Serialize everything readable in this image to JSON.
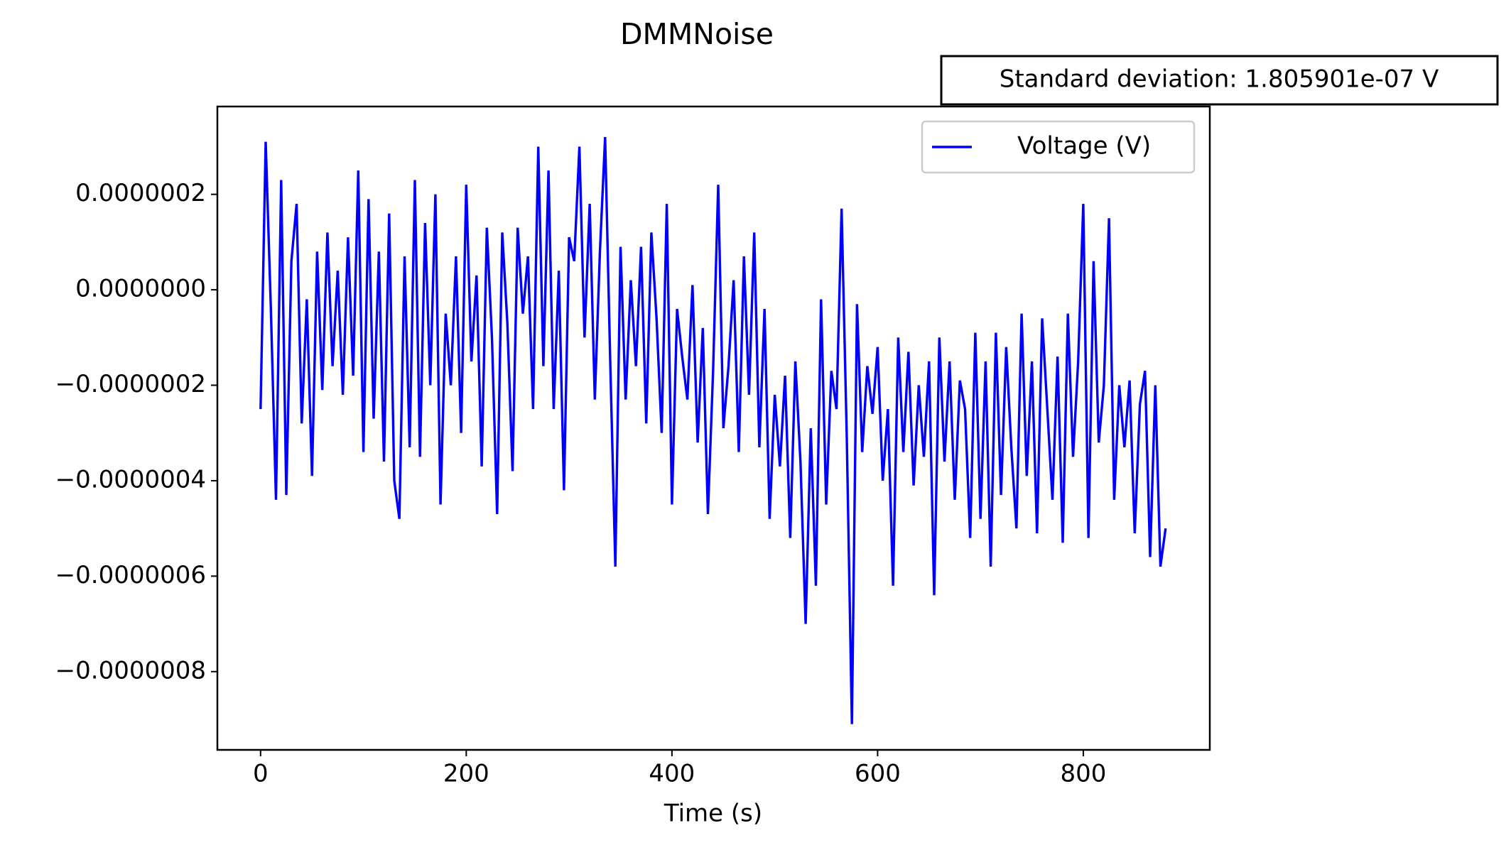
{
  "chart_data": {
    "type": "line",
    "title": "DMMNoise",
    "x_label": "Time (s)",
    "annotation": "Standard deviation: 1.805901e-07 V",
    "legend_position": "upper right",
    "x": [
      0,
      5,
      10,
      15,
      20,
      25,
      30,
      35,
      40,
      45,
      50,
      55,
      60,
      65,
      70,
      75,
      80,
      85,
      90,
      95,
      100,
      105,
      110,
      115,
      120,
      125,
      130,
      135,
      140,
      145,
      150,
      155,
      160,
      165,
      170,
      175,
      180,
      185,
      190,
      195,
      200,
      205,
      210,
      215,
      220,
      225,
      230,
      235,
      240,
      245,
      250,
      255,
      260,
      265,
      270,
      275,
      280,
      285,
      290,
      295,
      300,
      305,
      310,
      315,
      320,
      325,
      330,
      335,
      340,
      345,
      350,
      355,
      360,
      365,
      370,
      375,
      380,
      385,
      390,
      395,
      400,
      405,
      410,
      415,
      420,
      425,
      430,
      435,
      440,
      445,
      450,
      455,
      460,
      465,
      470,
      475,
      480,
      485,
      490,
      495,
      500,
      505,
      510,
      515,
      520,
      525,
      530,
      535,
      540,
      545,
      550,
      555,
      560,
      565,
      570,
      575,
      580,
      585,
      590,
      595,
      600,
      605,
      610,
      615,
      620,
      625,
      630,
      635,
      640,
      645,
      650,
      655,
      660,
      665,
      670,
      675,
      680,
      685,
      690,
      695,
      700,
      705,
      710,
      715,
      720,
      725,
      730,
      735,
      740,
      745,
      750,
      755,
      760,
      765,
      770,
      775,
      780,
      785,
      790,
      795,
      800,
      805,
      810,
      815,
      820,
      825,
      830,
      835,
      840,
      845,
      850,
      855,
      860,
      865,
      870,
      875,
      880
    ],
    "series": [
      {
        "name": "Voltage (V)",
        "color": "#0000ff",
        "values": [
          -2.5e-07,
          3.1e-07,
          -4e-08,
          -4.4e-07,
          2.3e-07,
          -4.3e-07,
          6e-08,
          1.8e-07,
          -2.8e-07,
          -2e-08,
          -3.9e-07,
          8e-08,
          -2.1e-07,
          1.2e-07,
          -1.6e-07,
          4e-08,
          -2.2e-07,
          1.1e-07,
          -1.8e-07,
          2.5e-07,
          -3.4e-07,
          1.9e-07,
          -2.7e-07,
          8e-08,
          -3.6e-07,
          1.6e-07,
          -4e-07,
          -4.8e-07,
          7e-08,
          -3.3e-07,
          2.3e-07,
          -3.5e-07,
          1.4e-07,
          -2e-07,
          2e-07,
          -4.5e-07,
          -5e-08,
          -2e-07,
          7e-08,
          -3e-07,
          2.2e-07,
          -1.5e-07,
          3e-08,
          -3.7e-07,
          1.3e-07,
          -1e-07,
          -4.7e-07,
          1.2e-07,
          -7e-08,
          -3.8e-07,
          1.3e-07,
          -5e-08,
          7e-08,
          -2.5e-07,
          3e-07,
          -1.6e-07,
          2.5e-07,
          -2.5e-07,
          4e-08,
          -4.2e-07,
          1.1e-07,
          6e-08,
          3e-07,
          -1e-07,
          1.8e-07,
          -2.3e-07,
          8e-08,
          3.2e-07,
          -1.5e-07,
          -5.8e-07,
          9e-08,
          -2.3e-07,
          2e-08,
          -1.6e-07,
          9e-08,
          -2.8e-07,
          1.2e-07,
          -6e-08,
          -3e-07,
          1.8e-07,
          -4.5e-07,
          -4e-08,
          -1.4e-07,
          -2.3e-07,
          1e-08,
          -3.2e-07,
          -8e-08,
          -4.7e-07,
          -1.7e-07,
          2.2e-07,
          -2.9e-07,
          -1.6e-07,
          2e-08,
          -3.4e-07,
          7e-08,
          -2.2e-07,
          1.2e-07,
          -3.3e-07,
          -4e-08,
          -4.8e-07,
          -2.2e-07,
          -3.7e-07,
          -1.8e-07,
          -5.2e-07,
          -1.5e-07,
          -3.6e-07,
          -7e-07,
          -2.9e-07,
          -6.2e-07,
          -2e-08,
          -4.5e-07,
          -1.7e-07,
          -2.5e-07,
          1.7e-07,
          -3.1e-07,
          -9.1e-07,
          -3e-08,
          -3.4e-07,
          -1.6e-07,
          -2.6e-07,
          -1.2e-07,
          -4e-07,
          -2.5e-07,
          -6.2e-07,
          -1e-07,
          -3.4e-07,
          -1.3e-07,
          -4.1e-07,
          -2e-07,
          -3.5e-07,
          -1.5e-07,
          -6.4e-07,
          -1e-07,
          -3.6e-07,
          -1.5e-07,
          -4.4e-07,
          -1.9e-07,
          -2.5e-07,
          -5.2e-07,
          -9e-08,
          -4.8e-07,
          -1.5e-07,
          -5.8e-07,
          -9e-08,
          -4.3e-07,
          -1.2e-07,
          -3.3e-07,
          -5e-07,
          -5e-08,
          -3.9e-07,
          -1.5e-07,
          -5.1e-07,
          -6e-08,
          -2.5e-07,
          -4.4e-07,
          -1.4e-07,
          -5.3e-07,
          -5e-08,
          -3.5e-07,
          -1.5e-07,
          1.8e-07,
          -5.2e-07,
          6e-08,
          -3.2e-07,
          -2e-07,
          1.5e-07,
          -4.4e-07,
          -2e-07,
          -3.3e-07,
          -1.9e-07,
          -5.1e-07,
          -2.4e-07,
          -1.7e-07,
          -5.6e-07,
          -2e-07,
          -5.8e-07,
          -5e-07
        ]
      }
    ],
    "xlim": [
      -42,
      923
    ],
    "xticks": [
      0,
      200,
      400,
      600,
      800
    ],
    "ylim": [
      -9.64e-07,
      3.84e-07
    ],
    "yticks": [
      {
        "value": 2e-07,
        "label": "0.0000002"
      },
      {
        "value": 0,
        "label": "0.0000000"
      },
      {
        "value": -2e-07,
        "label": "−0.0000002"
      },
      {
        "value": -4e-07,
        "label": "−0.0000004"
      },
      {
        "value": -6e-07,
        "label": "−0.0000006"
      },
      {
        "value": -8e-07,
        "label": "−0.0000008"
      }
    ],
    "grid": false
  }
}
